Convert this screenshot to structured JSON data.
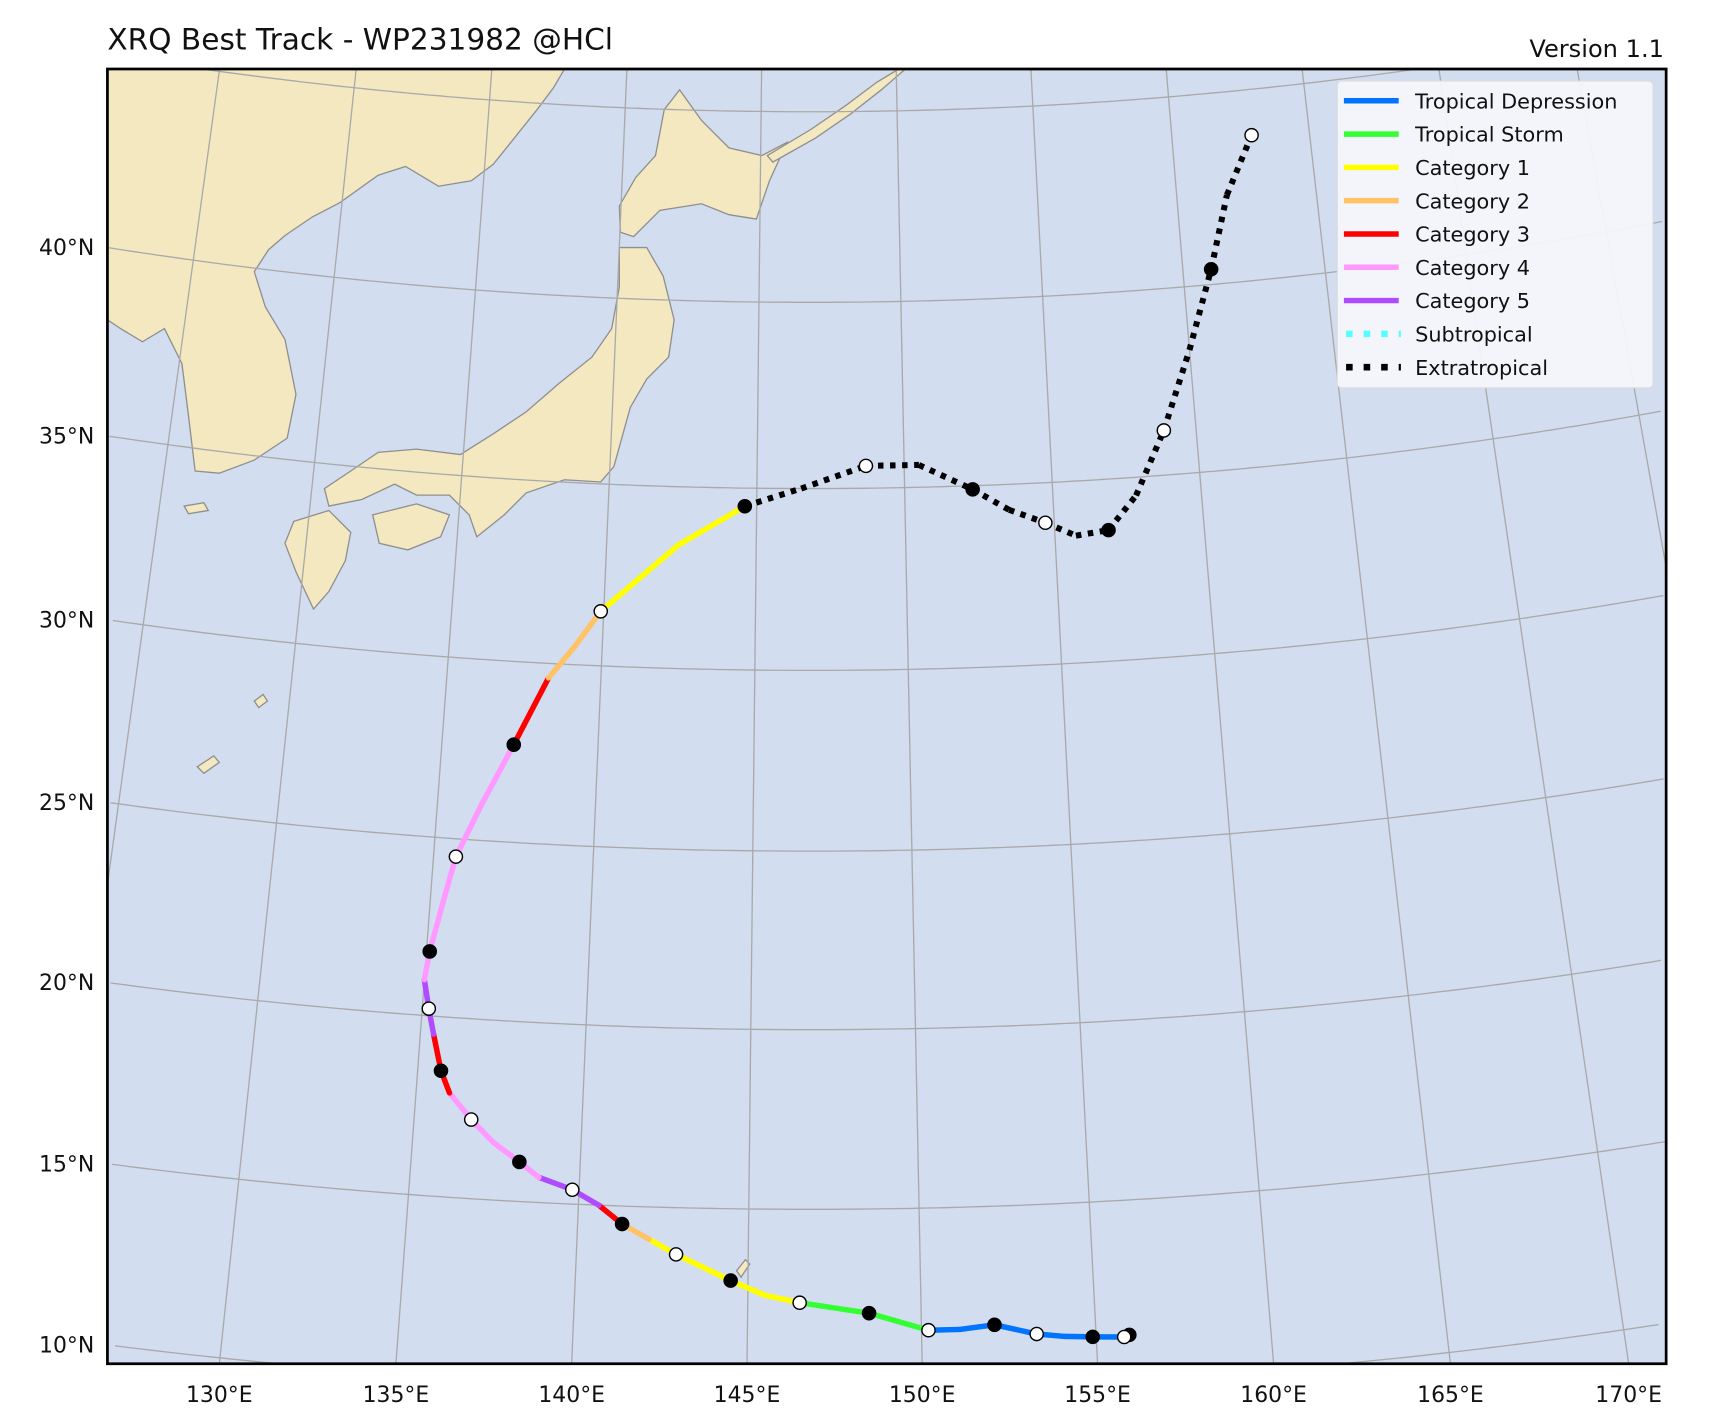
{
  "header": {
    "title": "XRQ Best Track - WP231982  @HCl",
    "version": "Version 1.1"
  },
  "colors": {
    "sea": "#d2ddef",
    "land": "#f4e8c1",
    "coast": "#8f8f8f",
    "grid": "#a9a9a9"
  },
  "legend": {
    "placement": "top-right",
    "items": [
      {
        "key": "TD",
        "label": "Tropical Depression",
        "color": "#0073ff",
        "style": "solid"
      },
      {
        "key": "TS",
        "label": "Tropical Storm",
        "color": "#33ff33",
        "style": "solid"
      },
      {
        "key": "C1",
        "label": "Category 1",
        "color": "#ffff00",
        "style": "solid"
      },
      {
        "key": "C2",
        "label": "Category 2",
        "color": "#ffc266",
        "style": "solid"
      },
      {
        "key": "C3",
        "label": "Category 3",
        "color": "#ff0000",
        "style": "solid"
      },
      {
        "key": "C4",
        "label": "Category 4",
        "color": "#ff99ff",
        "style": "solid"
      },
      {
        "key": "C5",
        "label": "Category 5",
        "color": "#b04cff",
        "style": "solid"
      },
      {
        "key": "SS",
        "label": "Subtropical",
        "color": "#55ffff",
        "style": "dotted"
      },
      {
        "key": "EX",
        "label": "Extratropical",
        "color": "#000000",
        "style": "dotted"
      }
    ]
  },
  "chart_data": {
    "type": "map-track",
    "grid": true,
    "lat_ticks": [
      "10°N",
      "15°N",
      "20°N",
      "25°N",
      "30°N",
      "35°N",
      "40°N"
    ],
    "lat_tick_values": [
      10,
      15,
      20,
      25,
      30,
      35,
      40
    ],
    "lon_ticks": [
      "130°E",
      "135°E",
      "140°E",
      "145°E",
      "150°E",
      "155°E",
      "160°E",
      "165°E",
      "170°E"
    ],
    "lon_tick_values": [
      130,
      135,
      140,
      145,
      150,
      155,
      160,
      165,
      170
    ],
    "track": [
      {
        "lon": 155.95,
        "lat": 11.25,
        "cat": "TD",
        "marker": "filled"
      },
      {
        "lon": 155.8,
        "lat": 11.2,
        "cat": "TD",
        "marker": "open"
      },
      {
        "lon": 154.9,
        "lat": 11.25,
        "cat": "TD",
        "marker": "filled"
      },
      {
        "lon": 154.1,
        "lat": 11.3,
        "cat": "TD",
        "marker": "none"
      },
      {
        "lon": 153.3,
        "lat": 11.4,
        "cat": "TD",
        "marker": "open"
      },
      {
        "lon": 152.1,
        "lat": 11.7,
        "cat": "TD",
        "marker": "filled"
      },
      {
        "lon": 151.1,
        "lat": 11.6,
        "cat": "TD",
        "marker": "none"
      },
      {
        "lon": 150.2,
        "lat": 11.6,
        "cat": "TS",
        "marker": "open"
      },
      {
        "lon": 148.5,
        "lat": 12.1,
        "cat": "TS",
        "marker": "filled"
      },
      {
        "lon": 146.5,
        "lat": 12.4,
        "cat": "C1",
        "marker": "open"
      },
      {
        "lon": 145.5,
        "lat": 12.6,
        "cat": "C1",
        "marker": "none"
      },
      {
        "lon": 144.5,
        "lat": 13.0,
        "cat": "C1",
        "marker": "filled"
      },
      {
        "lon": 142.9,
        "lat": 13.7,
        "cat": "C1",
        "marker": "open"
      },
      {
        "lon": 142.1,
        "lat": 14.1,
        "cat": "C2",
        "marker": "none"
      },
      {
        "lon": 141.3,
        "lat": 14.5,
        "cat": "C3",
        "marker": "filled"
      },
      {
        "lon": 140.6,
        "lat": 15.0,
        "cat": "C5",
        "marker": "none"
      },
      {
        "lon": 139.8,
        "lat": 15.4,
        "cat": "C5",
        "marker": "open"
      },
      {
        "lon": 138.8,
        "lat": 15.7,
        "cat": "C4",
        "marker": "none"
      },
      {
        "lon": 138.2,
        "lat": 16.1,
        "cat": "C4",
        "marker": "filled"
      },
      {
        "lon": 137.4,
        "lat": 16.6,
        "cat": "C4",
        "marker": "none"
      },
      {
        "lon": 136.7,
        "lat": 17.2,
        "cat": "C4",
        "marker": "open"
      },
      {
        "lon": 136.0,
        "lat": 17.9,
        "cat": "C3",
        "marker": "none"
      },
      {
        "lon": 135.7,
        "lat": 18.5,
        "cat": "C3",
        "marker": "filled"
      },
      {
        "lon": 135.4,
        "lat": 19.5,
        "cat": "C5",
        "marker": "none"
      },
      {
        "lon": 135.2,
        "lat": 20.2,
        "cat": "C5",
        "marker": "open"
      },
      {
        "lon": 135.0,
        "lat": 21.0,
        "cat": "C4",
        "marker": "none"
      },
      {
        "lon": 135.1,
        "lat": 21.8,
        "cat": "C4",
        "marker": "filled"
      },
      {
        "lon": 135.4,
        "lat": 23.2,
        "cat": "C4",
        "marker": "none"
      },
      {
        "lon": 135.7,
        "lat": 24.5,
        "cat": "C4",
        "marker": "open"
      },
      {
        "lon": 136.4,
        "lat": 26.0,
        "cat": "C4",
        "marker": "none"
      },
      {
        "lon": 137.3,
        "lat": 27.7,
        "cat": "C3",
        "marker": "filled"
      },
      {
        "lon": 138.3,
        "lat": 29.6,
        "cat": "C2",
        "marker": "none"
      },
      {
        "lon": 139.1,
        "lat": 30.5,
        "cat": "C2",
        "marker": "none"
      },
      {
        "lon": 139.9,
        "lat": 31.5,
        "cat": "C1",
        "marker": "open"
      },
      {
        "lon": 141.2,
        "lat": 32.5,
        "cat": "C1",
        "marker": "none"
      },
      {
        "lon": 142.4,
        "lat": 33.4,
        "cat": "C1",
        "marker": "none"
      },
      {
        "lon": 144.6,
        "lat": 34.5,
        "cat": "EX",
        "marker": "filled"
      },
      {
        "lon": 146.5,
        "lat": 35.0,
        "cat": "EX",
        "marker": "none"
      },
      {
        "lon": 148.7,
        "lat": 35.6,
        "cat": "EX",
        "marker": "open"
      },
      {
        "lon": 150.5,
        "lat": 35.6,
        "cat": "EX",
        "marker": "none"
      },
      {
        "lon": 152.3,
        "lat": 34.9,
        "cat": "EX",
        "marker": "filled"
      },
      {
        "lon": 153.5,
        "lat": 34.3,
        "cat": "EX",
        "marker": "none"
      },
      {
        "lon": 154.7,
        "lat": 33.9,
        "cat": "EX",
        "marker": "open"
      },
      {
        "lon": 155.7,
        "lat": 33.5,
        "cat": "EX",
        "marker": "none"
      },
      {
        "lon": 156.8,
        "lat": 33.6,
        "cat": "EX",
        "marker": "filled"
      },
      {
        "lon": 157.8,
        "lat": 34.5,
        "cat": "EX",
        "marker": "none"
      },
      {
        "lon": 158.9,
        "lat": 36.2,
        "cat": "EX",
        "marker": "open"
      },
      {
        "lon": 160.0,
        "lat": 38.3,
        "cat": "EX",
        "marker": "none"
      },
      {
        "lon": 161.0,
        "lat": 40.4,
        "cat": "EX",
        "marker": "filled"
      },
      {
        "lon": 161.8,
        "lat": 42.3,
        "cat": "EX",
        "marker": "none"
      },
      {
        "lon": 162.9,
        "lat": 43.8,
        "cat": "EX",
        "marker": "open"
      }
    ]
  }
}
